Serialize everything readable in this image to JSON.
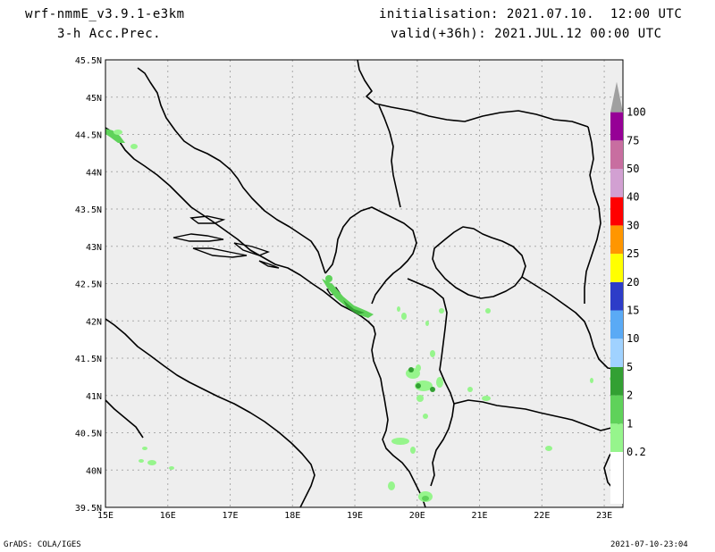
{
  "header": {
    "model": "wrf-nmmE_v3.9.1-e3km",
    "variable": "3-h Acc.Prec.",
    "init": "initialisation: 2021.07.10.  12:00 UTC",
    "valid": "valid(+36h): 2021.JUL.12 00:00 UTC"
  },
  "footer": {
    "left": "GrADS: COLA/IGES",
    "right": "2021-07-10-23:04"
  },
  "map": {
    "lon_range": [
      15,
      23.3
    ],
    "lat_range": [
      39.5,
      45.5
    ],
    "lon_labels": [
      "15E",
      "16E",
      "17E",
      "18E",
      "19E",
      "20E",
      "21E",
      "22E",
      "23E"
    ],
    "lat_labels": [
      "45.5N",
      "45N",
      "44.5N",
      "44N",
      "43.5N",
      "43N",
      "42.5N",
      "42N",
      "41.5N",
      "41N",
      "40.5N",
      "40N",
      "39.5N"
    ],
    "land_color": "#eeeeee",
    "grid_color": "#aaaaaa"
  },
  "colorbar": {
    "labels": [
      "0.2",
      "1",
      "2",
      "5",
      "10",
      "15",
      "20",
      "25",
      "30",
      "40",
      "50",
      "75",
      "100"
    ],
    "colors": [
      "#96f58c",
      "#5fd25a",
      "#33a033",
      "#a0d2ff",
      "#5aaaf5",
      "#2d3cc8",
      "#ffff00",
      "#ff9600",
      "#ff0000",
      "#d2a0d2",
      "#c86ea0",
      "#960096",
      "#a0a0a0"
    ]
  }
}
